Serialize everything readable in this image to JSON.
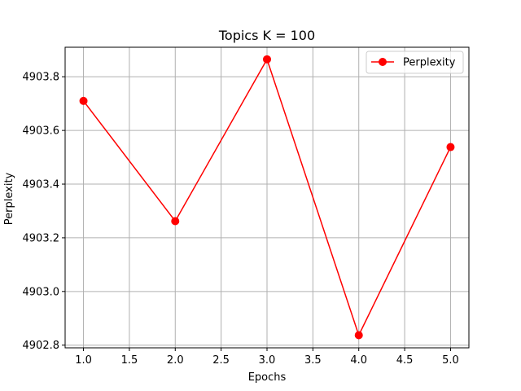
{
  "chart_data": {
    "type": "line",
    "title": "Topics K = 100",
    "xlabel": "Epochs",
    "ylabel": "Perplexity",
    "x": [
      1.0,
      2.0,
      3.0,
      4.0,
      5.0
    ],
    "series": [
      {
        "name": "Perplexity",
        "values": [
          4903.71,
          4903.262,
          4903.865,
          4902.837,
          4903.538
        ]
      }
    ],
    "xlim": [
      0.8,
      5.2
    ],
    "ylim": [
      4902.79,
      4903.91
    ],
    "xticks": [
      "1.0",
      "1.5",
      "2.0",
      "2.5",
      "3.0",
      "3.5",
      "4.0",
      "4.5",
      "5.0"
    ],
    "xtick_values": [
      1.0,
      1.5,
      2.0,
      2.5,
      3.0,
      3.5,
      4.0,
      4.5,
      5.0
    ],
    "yticks": [
      "4902.8",
      "4903.0",
      "4903.2",
      "4903.4",
      "4903.6",
      "4903.8"
    ],
    "ytick_values": [
      4902.8,
      4903.0,
      4903.2,
      4903.4,
      4903.6,
      4903.8
    ],
    "grid": true,
    "legend_position": "top-right",
    "line_color": "#ff0000",
    "marker": "circle"
  }
}
